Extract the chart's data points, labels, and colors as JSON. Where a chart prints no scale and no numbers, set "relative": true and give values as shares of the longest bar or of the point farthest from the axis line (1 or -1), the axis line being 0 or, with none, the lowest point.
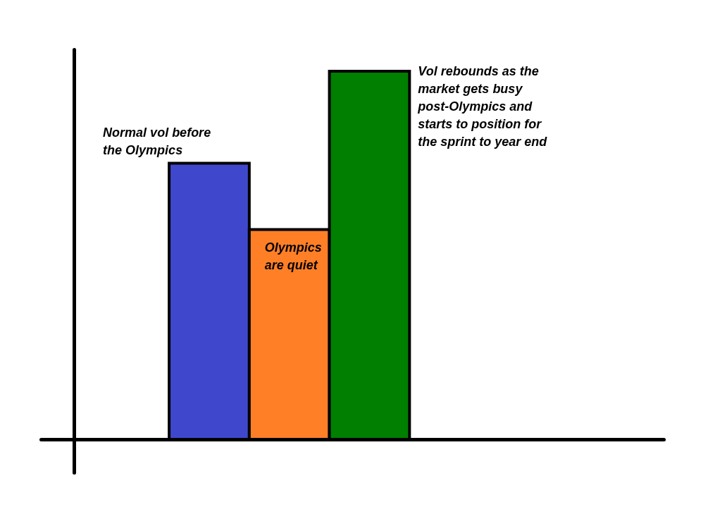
{
  "chart_data": {
    "type": "bar",
    "relative": true,
    "categories": [
      null,
      null,
      null
    ],
    "values": [
      0.75,
      0.57,
      1
    ],
    "colors": [
      "#3f48cc",
      "#ff7f27",
      "#007f00"
    ],
    "annotations": [
      "Normal vol before\nthe Olympics",
      "Olympics\nare quiet",
      "Vol rebounds as the\nmarket gets busy\npost-Olympics and\nstarts to position for\nthe sprint to year end"
    ]
  }
}
